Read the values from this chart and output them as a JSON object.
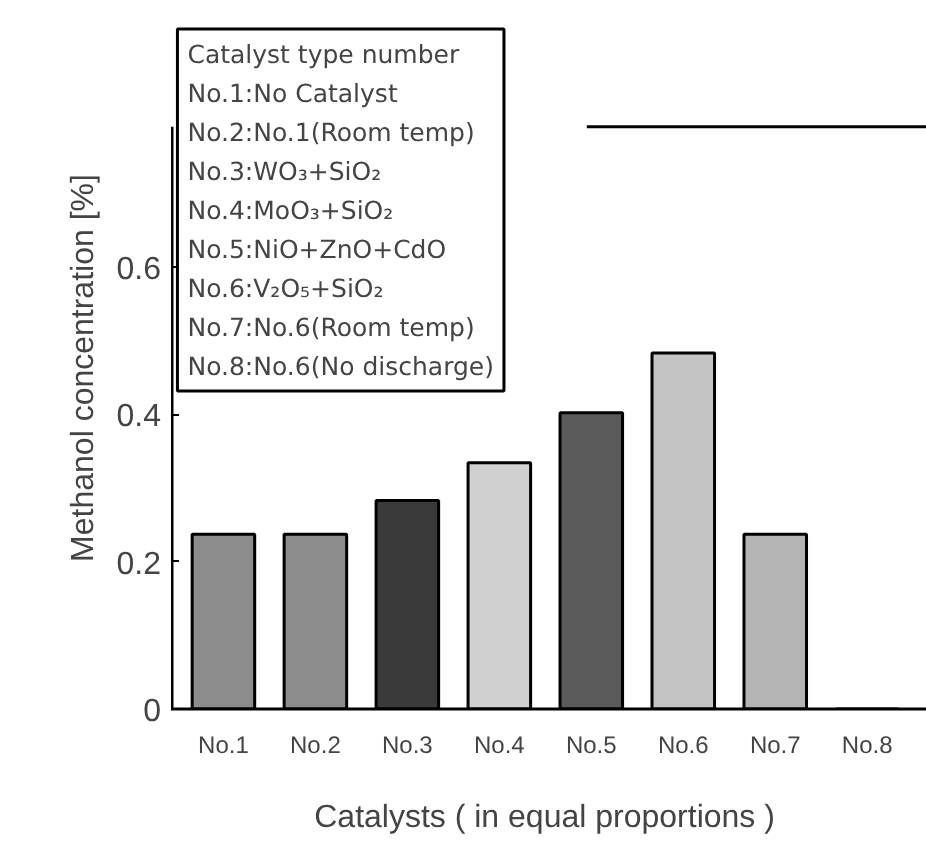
{
  "chart_data": {
    "type": "bar",
    "xlabel": "Catalysts ( in equal proportions  )",
    "ylabel": "Methanol concentration [%]",
    "categories": [
      "No.1",
      "No.2",
      "No.3",
      "No.4",
      "No.5",
      "No.6",
      "No.7",
      "No.8"
    ],
    "values": [
      0.237,
      0.237,
      0.283,
      0.334,
      0.402,
      0.483,
      0.237,
      0
    ],
    "colors": [
      "#8c8c8c",
      "#8c8c8c",
      "#3a3a3a",
      "#d0d0d0",
      "#5a5a5a",
      "#c4c4c4",
      "#b4b4b4",
      "#b4b4b4"
    ],
    "ylim": [
      0,
      0.79
    ],
    "yticks": [
      0,
      0.2,
      0.4,
      0.6
    ],
    "grid": false,
    "annotations": [
      "Catalyst type number\nNo.1:No Catalyst\nNo.2:No.1(Room temp)\nNo.3:WO₃+SiO₂\nNo.4:MoO₃+SiO₂\nNo.5:NiO+ZnO+CdO\nNo.6:V₂O₅+SiO₂\nNo.7:No.6(Room temp)\nNo.8:No.6(No discharge)"
    ]
  }
}
